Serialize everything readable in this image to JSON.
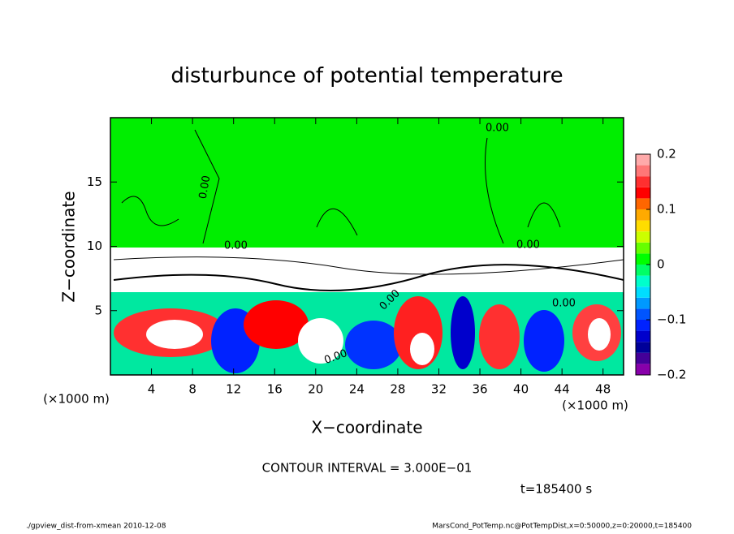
{
  "chart_data": {
    "type": "contour",
    "title": "disturbunce of potential temperature",
    "x_label": "X−coordinate",
    "y_label": "Z−coordinate",
    "x_unit": "(×1000 m)",
    "xlim": [
      0,
      50
    ],
    "xticks": [
      4,
      8,
      12,
      16,
      20,
      24,
      28,
      32,
      36,
      40,
      44,
      48
    ],
    "ylim": [
      0,
      20
    ],
    "yticks": [
      5,
      10,
      15
    ],
    "colorbar": {
      "clim": [
        -0.2,
        0.2
      ],
      "ticks": [
        0.2,
        0.1,
        0,
        {
          "value": -0.1,
          "label": "−0.1"
        },
        {
          "value": -0.2,
          "label": "−0.2"
        }
      ],
      "colors": [
        "#8800aa",
        "#440099",
        "#000099",
        "#0000cc",
        "#0022ff",
        "#0055ff",
        "#0099ff",
        "#00ddff",
        "#00ffcc",
        "#00ff66",
        "#00ff00",
        "#66ff00",
        "#ccff00",
        "#ffdd00",
        "#ffaa00",
        "#ff6600",
        "#ff0000",
        "#ff3030",
        "#ff7777",
        "#ffaaaa"
      ]
    },
    "contour_labels": [
      "0.00",
      "0.00",
      "0.00",
      "0.00",
      "0.00",
      "0.00",
      "0.00"
    ],
    "contour_interval": "CONTOUR INTERVAL = 3.000E−01",
    "time": "t=185400 s",
    "footer_left": "./gpview_dist-from-xmean  2010-12-08",
    "footer_right": "MarsCond_PotTemp.nc@PotTempDist,x=0:50000,z=0:20000,t=185400"
  }
}
